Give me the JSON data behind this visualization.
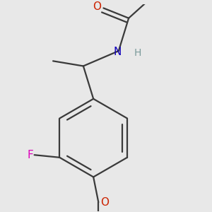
{
  "bg_color": "#e8e8e8",
  "bond_color": "#3a3a3a",
  "bond_lw": 1.6,
  "atom_colors": {
    "O": "#cc2200",
    "N": "#1100bb",
    "F": "#dd00bb",
    "H": "#7a9a9a"
  },
  "font_size_atom": 11,
  "font_size_H": 10,
  "font_size_small": 10
}
